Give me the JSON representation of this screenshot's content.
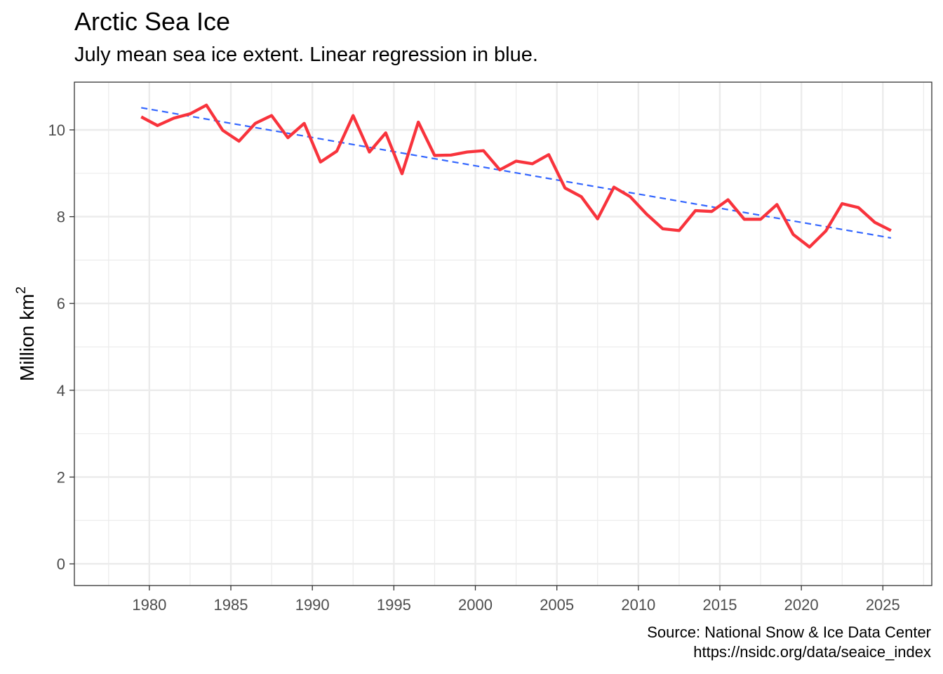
{
  "title": "Arctic Sea Ice",
  "subtitle": "July mean sea ice extent. Linear regression in blue.",
  "caption_line1": "Source: National Snow & Ice Data Center",
  "caption_line2": "https://nsidc.org/data/seaice_index",
  "colors": {
    "line": "#f8333c",
    "regression": "#3366ff",
    "grid": "#ebebeb",
    "panel_border": "#333333"
  },
  "chart_data": {
    "type": "line",
    "title": "Arctic Sea Ice",
    "subtitle": "July mean sea ice extent. Linear regression in blue.",
    "xlabel": "",
    "ylabel": "Million km",
    "ylabel_superscript": "2",
    "xlim": [
      1975.4,
      2028.0
    ],
    "ylim": [
      -0.5,
      11.1
    ],
    "xticks": [
      1980,
      1985,
      1990,
      1995,
      2000,
      2005,
      2010,
      2015,
      2020,
      2025
    ],
    "yticks": [
      0,
      2,
      4,
      6,
      8,
      10
    ],
    "grid": true,
    "series": [
      {
        "x": [
          1979.5,
          1980.5,
          1981.5,
          1982.5,
          1983.5,
          1984.5,
          1985.5,
          1986.5,
          1987.5,
          1988.5,
          1989.5,
          1990.5,
          1991.5,
          1992.5,
          1993.5,
          1994.5,
          1995.5,
          1996.5,
          1997.5,
          1998.5,
          1999.5,
          2000.5,
          2001.5,
          2002.5,
          2003.5,
          2004.5,
          2005.5,
          2006.5,
          2007.5,
          2008.5,
          2009.5,
          2010.5,
          2011.5,
          2012.5,
          2013.5,
          2014.5,
          2015.5,
          2016.5,
          2017.5,
          2018.5,
          2019.5,
          2020.5,
          2021.5,
          2022.5,
          2023.5,
          2024.5,
          2025.5
        ],
        "values": [
          10.3,
          10.1,
          10.27,
          10.37,
          10.57,
          9.99,
          9.74,
          10.15,
          10.33,
          9.82,
          10.15,
          9.26,
          9.51,
          10.33,
          9.49,
          9.93,
          8.99,
          10.18,
          9.41,
          9.42,
          9.49,
          9.52,
          9.08,
          9.28,
          9.22,
          9.43,
          8.66,
          8.46,
          7.95,
          8.68,
          8.46,
          8.06,
          7.72,
          7.68,
          8.14,
          8.12,
          8.39,
          7.94,
          7.94,
          8.28,
          7.59,
          7.3,
          7.67,
          8.3,
          8.21,
          7.87,
          7.68
        ]
      }
    ],
    "regression": {
      "x": [
        1979.5,
        2025.5
      ],
      "values": [
        10.51,
        7.51
      ],
      "style": "dashed"
    }
  }
}
